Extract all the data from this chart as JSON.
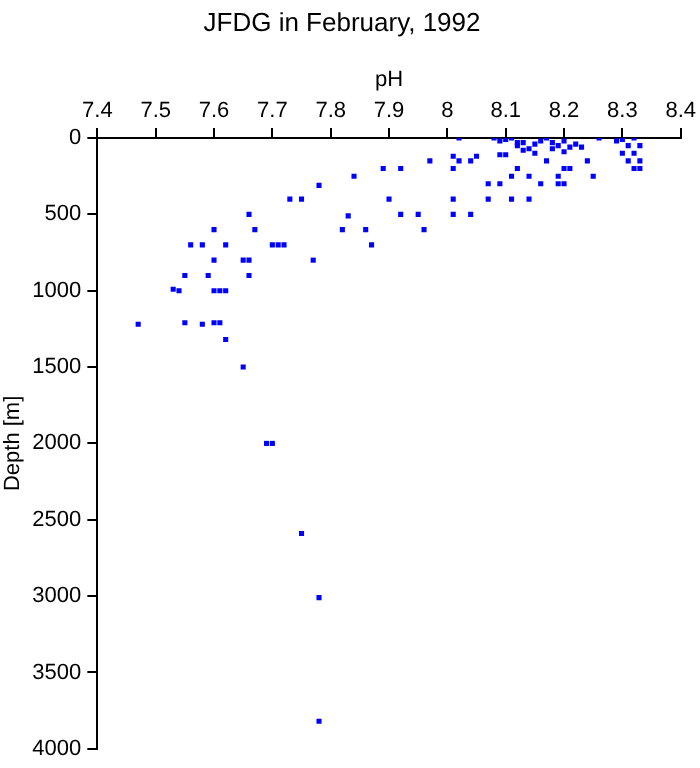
{
  "chart_data": {
    "type": "scatter",
    "title": "JFDG in February, 1992",
    "xlabel": "pH",
    "ylabel": "Depth [m]",
    "color": "#0000ff",
    "marker": "square",
    "grid": false,
    "legend": false,
    "xlim": [
      7.4,
      8.4
    ],
    "xticks": [
      7.4,
      7.5,
      7.6,
      7.7,
      7.8,
      7.9,
      8,
      8.1,
      8.2,
      8.3,
      8.4
    ],
    "ylim": [
      4000,
      0
    ],
    "yticks": [
      0,
      500,
      1000,
      1500,
      2000,
      2500,
      3000,
      3500,
      4000
    ],
    "x": [
      7.47,
      7.53,
      7.54,
      7.55,
      7.55,
      7.56,
      7.58,
      7.58,
      7.59,
      7.6,
      7.6,
      7.6,
      7.61,
      7.62,
      7.6,
      7.61,
      7.62,
      7.62,
      7.65,
      7.65,
      7.66,
      7.66,
      7.66,
      7.67,
      7.7,
      7.71,
      7.72,
      7.73,
      7.75,
      7.77,
      7.78,
      7.82,
      7.83,
      7.84,
      7.86,
      7.87,
      7.89,
      7.9,
      7.69,
      7.7,
      7.75,
      7.78,
      7.78,
      7.92,
      7.92,
      7.95,
      7.96,
      7.97,
      8.01,
      8.01,
      8.01,
      8.01,
      8.02,
      8.02,
      8.04,
      8.04,
      8.05,
      8.07,
      8.09,
      8.07,
      8.09,
      8.1,
      8.08,
      8.09,
      8.1,
      8.11,
      8.12,
      8.11,
      8.11,
      8.14,
      8.12,
      8.14,
      8.12,
      8.13,
      8.14,
      8.15,
      8.16,
      8.13,
      8.15,
      8.16,
      8.17,
      8.18,
      8.17,
      8.18,
      8.19,
      8.2,
      8.21,
      8.22,
      8.2,
      8.19,
      8.19,
      8.2,
      8.2,
      8.21,
      8.24,
      8.25,
      8.26,
      8.29,
      8.3,
      8.31,
      8.32,
      8.33,
      8.32,
      8.31,
      8.33,
      8.32,
      8.33,
      8.3,
      8.23
    ],
    "values": [
      1220,
      990,
      1000,
      900,
      1210,
      700,
      700,
      1220,
      900,
      600,
      800,
      1000,
      1000,
      1000,
      1210,
      1210,
      700,
      1320,
      800,
      1500,
      800,
      500,
      900,
      600,
      700,
      700,
      700,
      400,
      400,
      800,
      310,
      600,
      510,
      250,
      600,
      700,
      200,
      400,
      2000,
      2000,
      2590,
      3010,
      3820,
      200,
      500,
      500,
      600,
      150,
      200,
      500,
      400,
      120,
      150,
      0,
      500,
      150,
      120,
      300,
      300,
      400,
      110,
      110,
      0,
      20,
      10,
      0,
      30,
      250,
      400,
      400,
      200,
      250,
      50,
      30,
      70,
      40,
      20,
      80,
      100,
      300,
      150,
      70,
      0,
      30,
      50,
      20,
      60,
      40,
      90,
      250,
      300,
      300,
      200,
      200,
      150,
      250,
      0,
      20,
      100,
      150,
      0,
      50,
      100,
      50,
      150,
      200,
      200,
      10,
      60
    ]
  }
}
